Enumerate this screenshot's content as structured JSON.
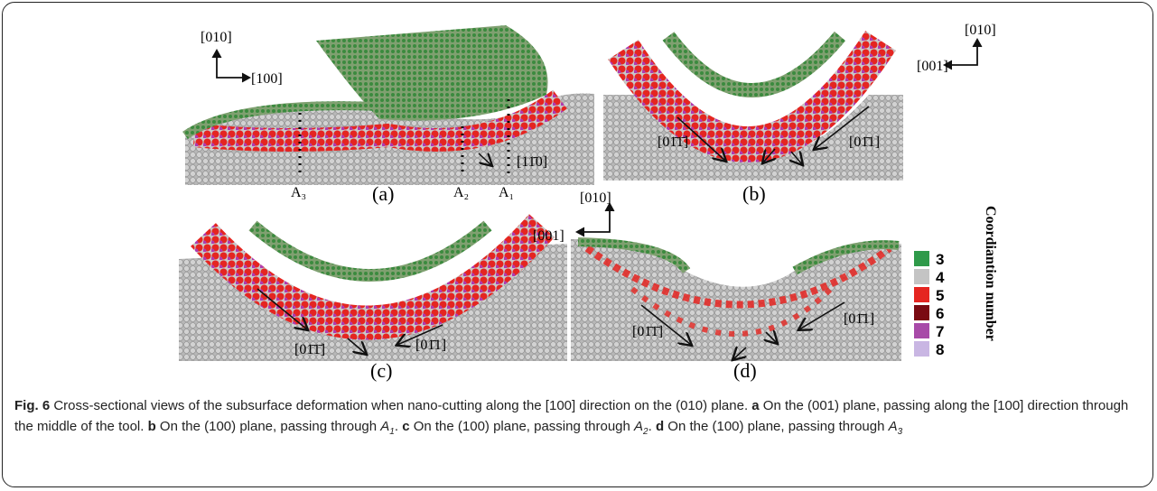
{
  "panels": [
    {
      "label": "(a)",
      "annotations": [
        "[010]",
        "[100]",
        "A₃",
        "A₂",
        "A₁",
        "[11̄0]"
      ]
    },
    {
      "label": "(b)",
      "annotations": [
        "[010]",
        "[001]",
        "[01̄1̄]",
        "[01̄1]"
      ]
    },
    {
      "label": "(c)",
      "annotations": [
        "[01̄1̄]",
        "[01̄1]"
      ]
    },
    {
      "label": "(d)",
      "annotations": [
        "[010]",
        "[001]",
        "[01̄1̄]",
        "[01̄1]"
      ]
    }
  ],
  "legend": {
    "title": "Coordiantion number",
    "items": [
      {
        "label": "3",
        "color": "#2f9a4a"
      },
      {
        "label": "4",
        "color": "#c4c4c4"
      },
      {
        "label": "5",
        "color": "#e52521"
      },
      {
        "label": "6",
        "color": "#7a0a12"
      },
      {
        "label": "7",
        "color": "#a84aa8"
      },
      {
        "label": "8",
        "color": "#c9b6e3"
      }
    ]
  },
  "caption": [
    {
      "text": "Fig. 6",
      "style": "bold"
    },
    {
      "text": " Cross-sectional views of the subsurface deformation when nano-cutting along the [100] direction on the (010) plane. "
    },
    {
      "text": "a",
      "style": "bold"
    },
    {
      "text": " On the (001) plane, passing along the [100] direction through the middle of the tool. "
    },
    {
      "text": "b",
      "style": "bold"
    },
    {
      "text": " On the (100) plane, passing through "
    },
    {
      "text": "A",
      "style": "italic"
    },
    {
      "text": "1",
      "style": "sub"
    },
    {
      "text": ". "
    },
    {
      "text": "c",
      "style": "bold"
    },
    {
      "text": " On the (100) plane, passing through "
    },
    {
      "text": "A",
      "style": "italic"
    },
    {
      "text": "2",
      "style": "sub"
    },
    {
      "text": ". "
    },
    {
      "text": "d",
      "style": "bold"
    },
    {
      "text": " On the (100) plane, passing through "
    },
    {
      "text": "A",
      "style": "italic"
    },
    {
      "text": "3",
      "style": "sub"
    }
  ]
}
